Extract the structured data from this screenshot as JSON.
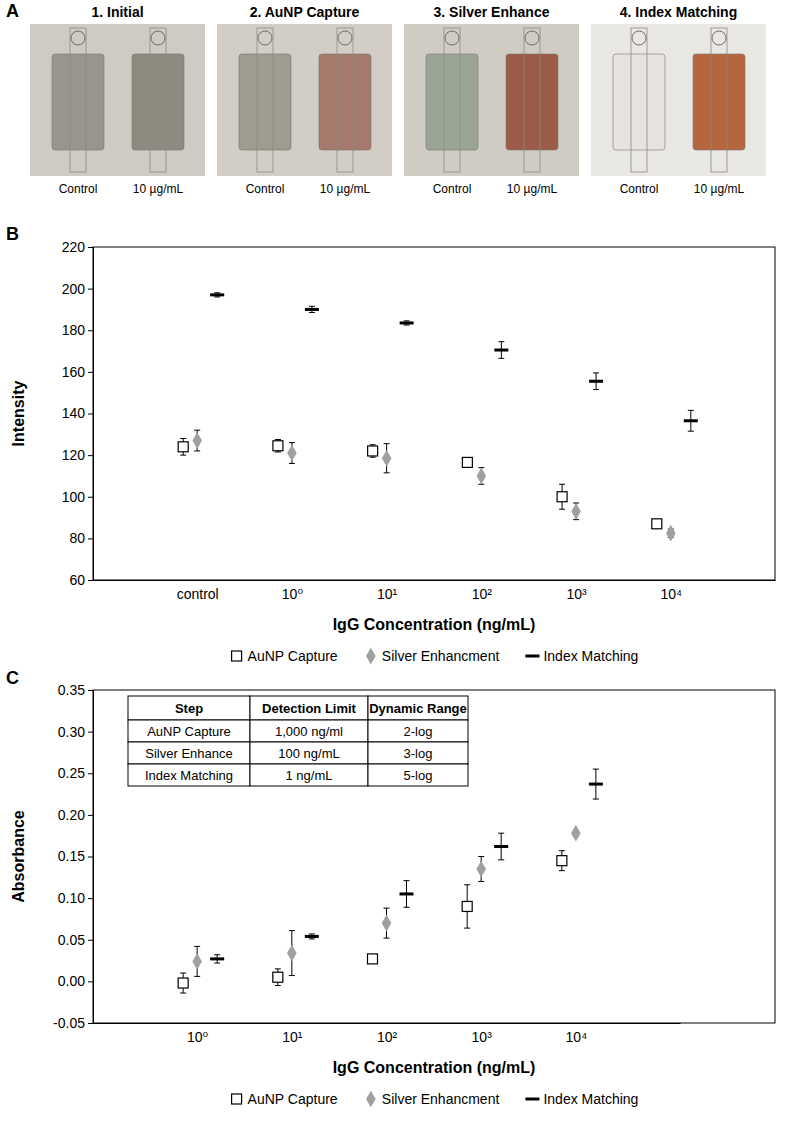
{
  "photo_panel": {
    "panel_label": "A",
    "photos": [
      {
        "title": "1. Initial",
        "labels": [
          "Control",
          "10 µg/mL"
        ]
      },
      {
        "title": "2. AuNP Capture",
        "labels": [
          "Control",
          "10 µg/mL"
        ]
      },
      {
        "title": "3. Silver Enhance",
        "labels": [
          "Control",
          "10 µg/mL"
        ]
      },
      {
        "title": "4. Index Matching",
        "labels": [
          "Control",
          "10 µg/mL"
        ]
      }
    ]
  },
  "chart_data": [
    {
      "panel_label": "B",
      "type": "scatter",
      "x_label": "IgG Concentration (ng/mL)",
      "y_label": "Intensity",
      "categories": [
        "control",
        "10⁰",
        "10¹",
        "10²",
        "10³",
        "10⁴"
      ],
      "ylim": [
        60,
        220
      ],
      "yticks": [
        60,
        80,
        100,
        120,
        140,
        160,
        180,
        200,
        220
      ],
      "legend": "bottom",
      "series": [
        {
          "name": "AuNP Capture",
          "color": "#000000",
          "marker": "square-open",
          "values": [
            124,
            124.5,
            122,
            116.5,
            100,
            87
          ],
          "errors": [
            4,
            3,
            3,
            2,
            6,
            2
          ]
        },
        {
          "name": "Silver Enhancment",
          "color": "#a0a0a0",
          "marker": "diamond",
          "values": [
            127,
            121,
            118.5,
            110,
            93,
            82.5
          ],
          "errors": [
            5,
            5,
            7,
            4,
            4,
            2
          ]
        },
        {
          "name": "Index Matching",
          "color": "#000000",
          "marker": "dash",
          "values": [
            197,
            190,
            183.5,
            170.5,
            155.5,
            136.5
          ],
          "errors": [
            1,
            1.5,
            1,
            4,
            4,
            5
          ]
        }
      ]
    },
    {
      "panel_label": "C",
      "type": "scatter",
      "x_label": "IgG Concentration (ng/mL)",
      "y_label": "Absorbance",
      "categories": [
        "10⁰",
        "10¹",
        "10²",
        "10³",
        "10⁴"
      ],
      "ylim": [
        -0.05,
        0.35
      ],
      "yticks": [
        -0.05,
        {
          "value": 0,
          "label": "0.00"
        },
        0.05,
        {
          "value": 0.1,
          "label": "0.10"
        },
        0.15,
        {
          "value": 0.2,
          "label": "0.20"
        },
        0.25,
        {
          "value": 0.3,
          "label": "0.30"
        },
        0.35
      ],
      "legend": "bottom",
      "series": [
        {
          "name": "AuNP Capture",
          "color": "#000000",
          "marker": "square-open",
          "values": [
            -0.002,
            0.005,
            0.027,
            0.09,
            0.145
          ],
          "errors": [
            0.012,
            0.01,
            0.005,
            0.026,
            0.012
          ]
        },
        {
          "name": "Silver Enhancment",
          "color": "#a0a0a0",
          "marker": "diamond",
          "values": [
            0.024,
            0.034,
            0.07,
            0.135,
            0.178
          ],
          "errors": [
            0.018,
            0.027,
            0.018,
            0.015,
            0.003
          ]
        },
        {
          "name": "Index Matching",
          "color": "#000000",
          "marker": "dash",
          "values": [
            0.027,
            0.054,
            0.105,
            0.162,
            0.237
          ],
          "errors": [
            0.005,
            0.003,
            0.016,
            0.016,
            0.018
          ]
        }
      ],
      "table": {
        "header": [
          "Step",
          "Detection Limit",
          "Dynamic Range"
        ],
        "rows": [
          [
            "AuNP Capture",
            "1,000 ng/ml",
            "2-log"
          ],
          [
            "Silver Enhance",
            "100 ng/mL",
            "3-log"
          ],
          [
            "Index Matching",
            "1 ng/mL",
            "5-log"
          ]
        ]
      }
    }
  ]
}
